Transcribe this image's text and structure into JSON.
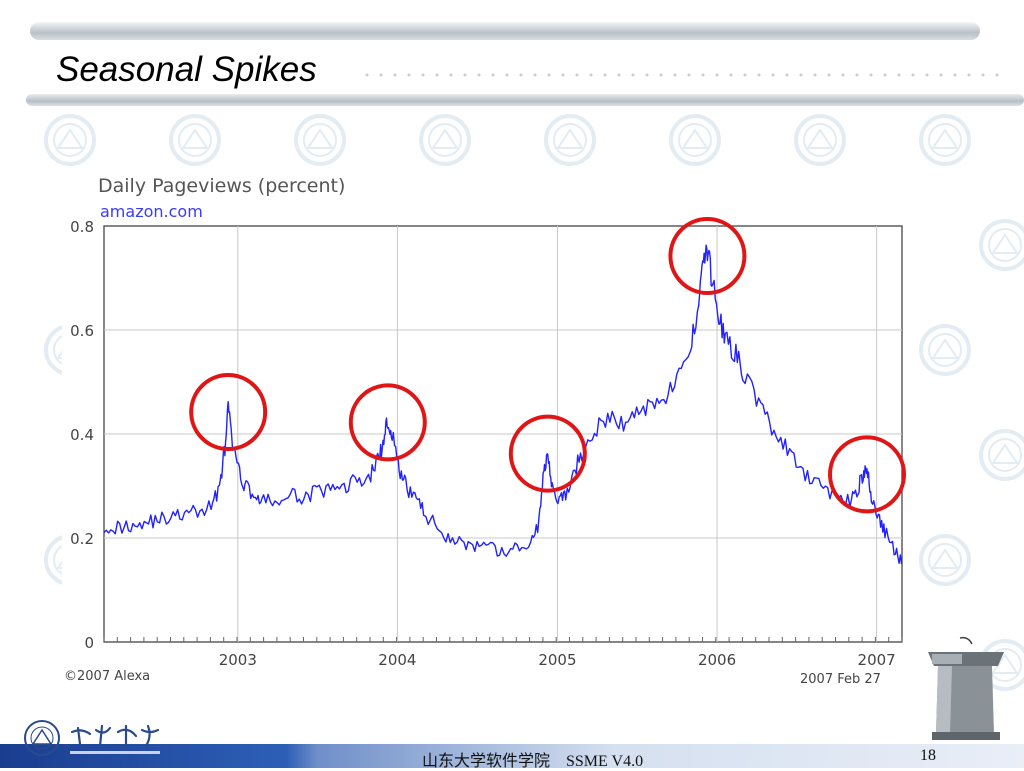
{
  "slide": {
    "title": "Seasonal Spikes",
    "footer_center": "山东大学软件学院    SSME V4.0",
    "page_number": "18",
    "colors": {
      "footer_blue": "#1a3d8f",
      "circle": "#e01515",
      "line": "#2222ff"
    }
  },
  "chart_data": {
    "type": "line",
    "title": "Daily Pageviews (percent)",
    "subtitle": "amazon.com",
    "credit_left": "©2007 Alexa",
    "credit_right": "2007 Feb 27",
    "grid": true,
    "ylim": [
      0,
      0.8
    ],
    "yticks": [
      "0",
      "0.2",
      "0.4",
      "0.6",
      "0.8"
    ],
    "xticks": [
      "2003",
      "2004",
      "2005",
      "2006",
      "2007"
    ],
    "series": [
      {
        "x": [
          "2002-03-01",
          "2002-04-01",
          "2002-05-01",
          "2002-06-01",
          "2002-07-01",
          "2002-08-01",
          "2002-09-01",
          "2002-10-01",
          "2002-11-01",
          "2002-11-20",
          "2002-12-01",
          "2002-12-10",
          "2002-12-20",
          "2003-01-05",
          "2003-01-20",
          "2003-02-10",
          "2003-03-01",
          "2003-04-01",
          "2003-05-01",
          "2003-06-01",
          "2003-07-01",
          "2003-08-01",
          "2003-09-01",
          "2003-10-01",
          "2003-11-01",
          "2003-11-20",
          "2003-12-01",
          "2003-12-10",
          "2003-12-20",
          "2004-01-05",
          "2004-01-20",
          "2004-02-10",
          "2004-03-01",
          "2004-04-01",
          "2004-05-01",
          "2004-06-01",
          "2004-07-01",
          "2004-08-01",
          "2004-09-01",
          "2004-10-01",
          "2004-11-01",
          "2004-11-20",
          "2004-12-01",
          "2004-12-10",
          "2004-12-20",
          "2005-01-05",
          "2005-01-20",
          "2005-02-10",
          "2005-03-01",
          "2005-04-01",
          "2005-05-01",
          "2005-06-01",
          "2005-07-01",
          "2005-08-01",
          "2005-09-01",
          "2005-10-01",
          "2005-11-01",
          "2005-11-20",
          "2005-12-01",
          "2005-12-10",
          "2005-12-20",
          "2006-01-05",
          "2006-01-20",
          "2006-02-10",
          "2006-03-01",
          "2006-04-01",
          "2006-05-01",
          "2006-06-01",
          "2006-07-01",
          "2006-08-01",
          "2006-09-01",
          "2006-10-01",
          "2006-11-01",
          "2006-11-20",
          "2006-12-01",
          "2006-12-10",
          "2006-12-20",
          "2007-01-05",
          "2007-01-20",
          "2007-02-10",
          "2007-02-27"
        ],
        "y": [
          0.225,
          0.22,
          0.225,
          0.23,
          0.235,
          0.24,
          0.245,
          0.25,
          0.26,
          0.3,
          0.36,
          0.45,
          0.38,
          0.32,
          0.3,
          0.28,
          0.27,
          0.27,
          0.28,
          0.28,
          0.29,
          0.29,
          0.3,
          0.31,
          0.32,
          0.36,
          0.38,
          0.43,
          0.4,
          0.33,
          0.3,
          0.28,
          0.25,
          0.22,
          0.2,
          0.19,
          0.18,
          0.18,
          0.17,
          0.18,
          0.19,
          0.23,
          0.33,
          0.37,
          0.3,
          0.27,
          0.28,
          0.33,
          0.37,
          0.41,
          0.43,
          0.42,
          0.44,
          0.46,
          0.47,
          0.5,
          0.56,
          0.66,
          0.74,
          0.75,
          0.7,
          0.63,
          0.58,
          0.56,
          0.52,
          0.47,
          0.42,
          0.38,
          0.34,
          0.31,
          0.3,
          0.28,
          0.27,
          0.3,
          0.32,
          0.33,
          0.28,
          0.24,
          0.21,
          0.18,
          0.15
        ]
      }
    ],
    "highlighted_spikes": [
      "2002-12-10",
      "2003-12-10",
      "2004-12-10",
      "2005-12-10",
      "2006-12-10"
    ]
  }
}
